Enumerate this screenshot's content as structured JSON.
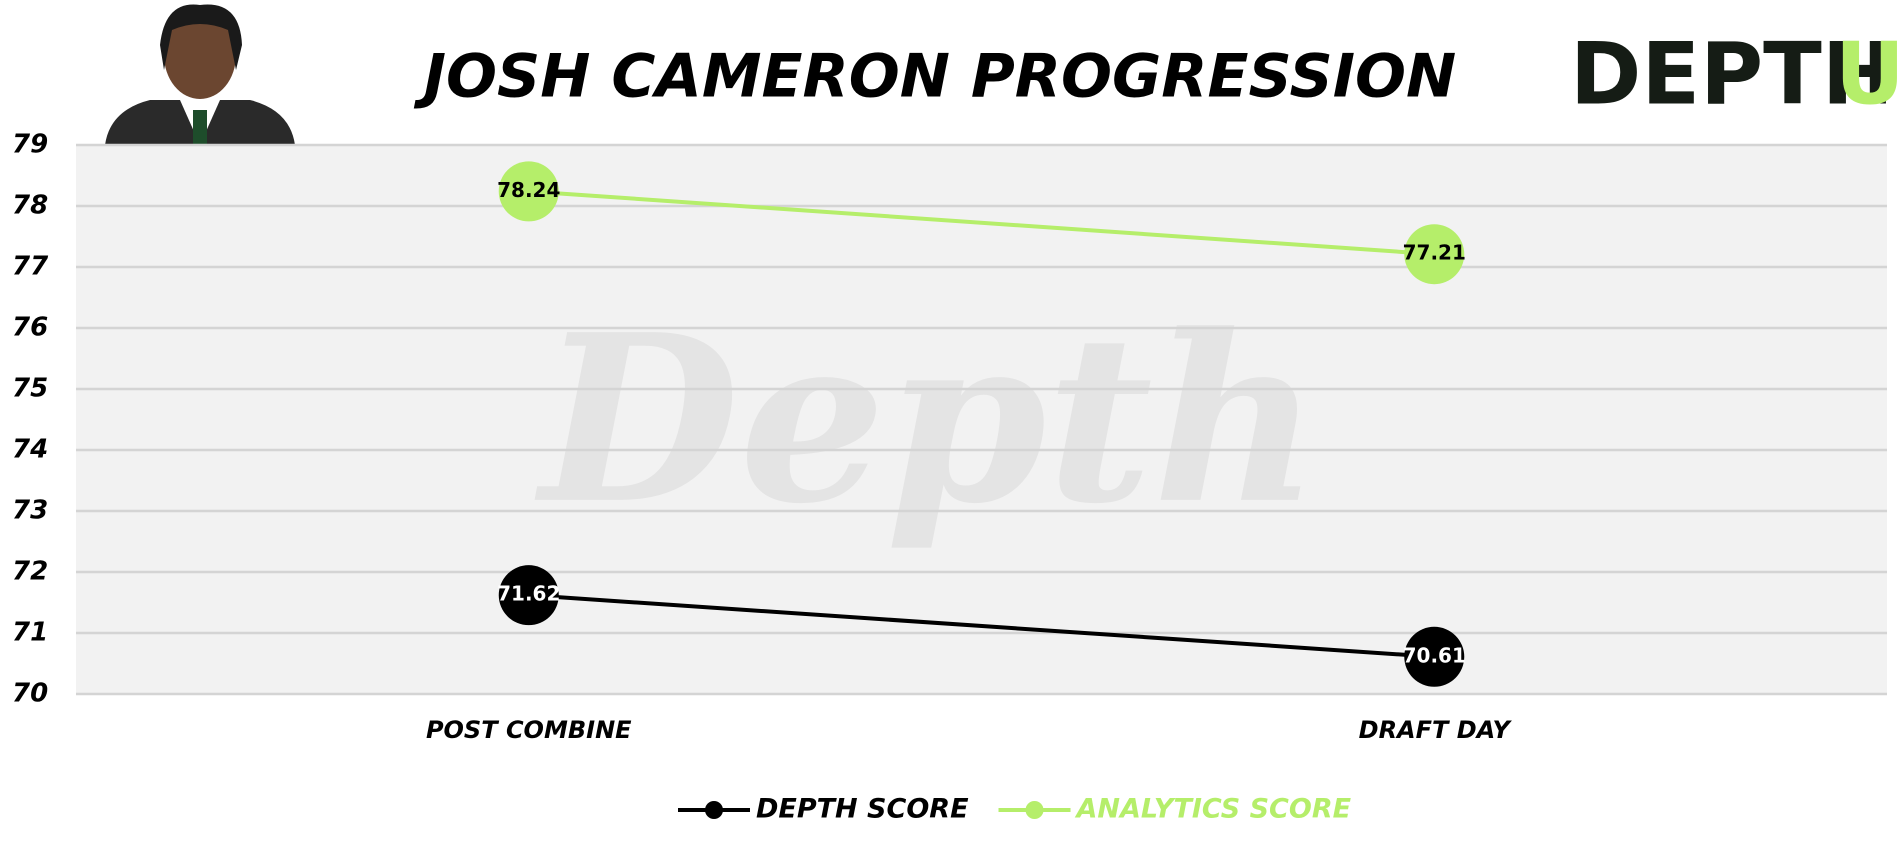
{
  "chart_data": {
    "type": "line",
    "title": "JOSH CAMERON PROGRESSION",
    "categories": [
      "POST COMBINE",
      "DRAFT DAY"
    ],
    "series": [
      {
        "name": "DEPTH SCORE",
        "color": "#000000",
        "values": [
          71.62,
          70.61
        ]
      },
      {
        "name": "ANALYTICS SCORE",
        "color": "#b5ee6a",
        "values": [
          78.24,
          77.21
        ]
      }
    ],
    "ylim": [
      70,
      79
    ],
    "yticks": [
      70,
      71,
      72,
      73,
      74,
      75,
      76,
      77,
      78,
      79
    ],
    "grid": true,
    "legend": "bottom"
  },
  "logo": {
    "main": "DEPTH",
    "accent": "U"
  },
  "watermark": "Depth"
}
